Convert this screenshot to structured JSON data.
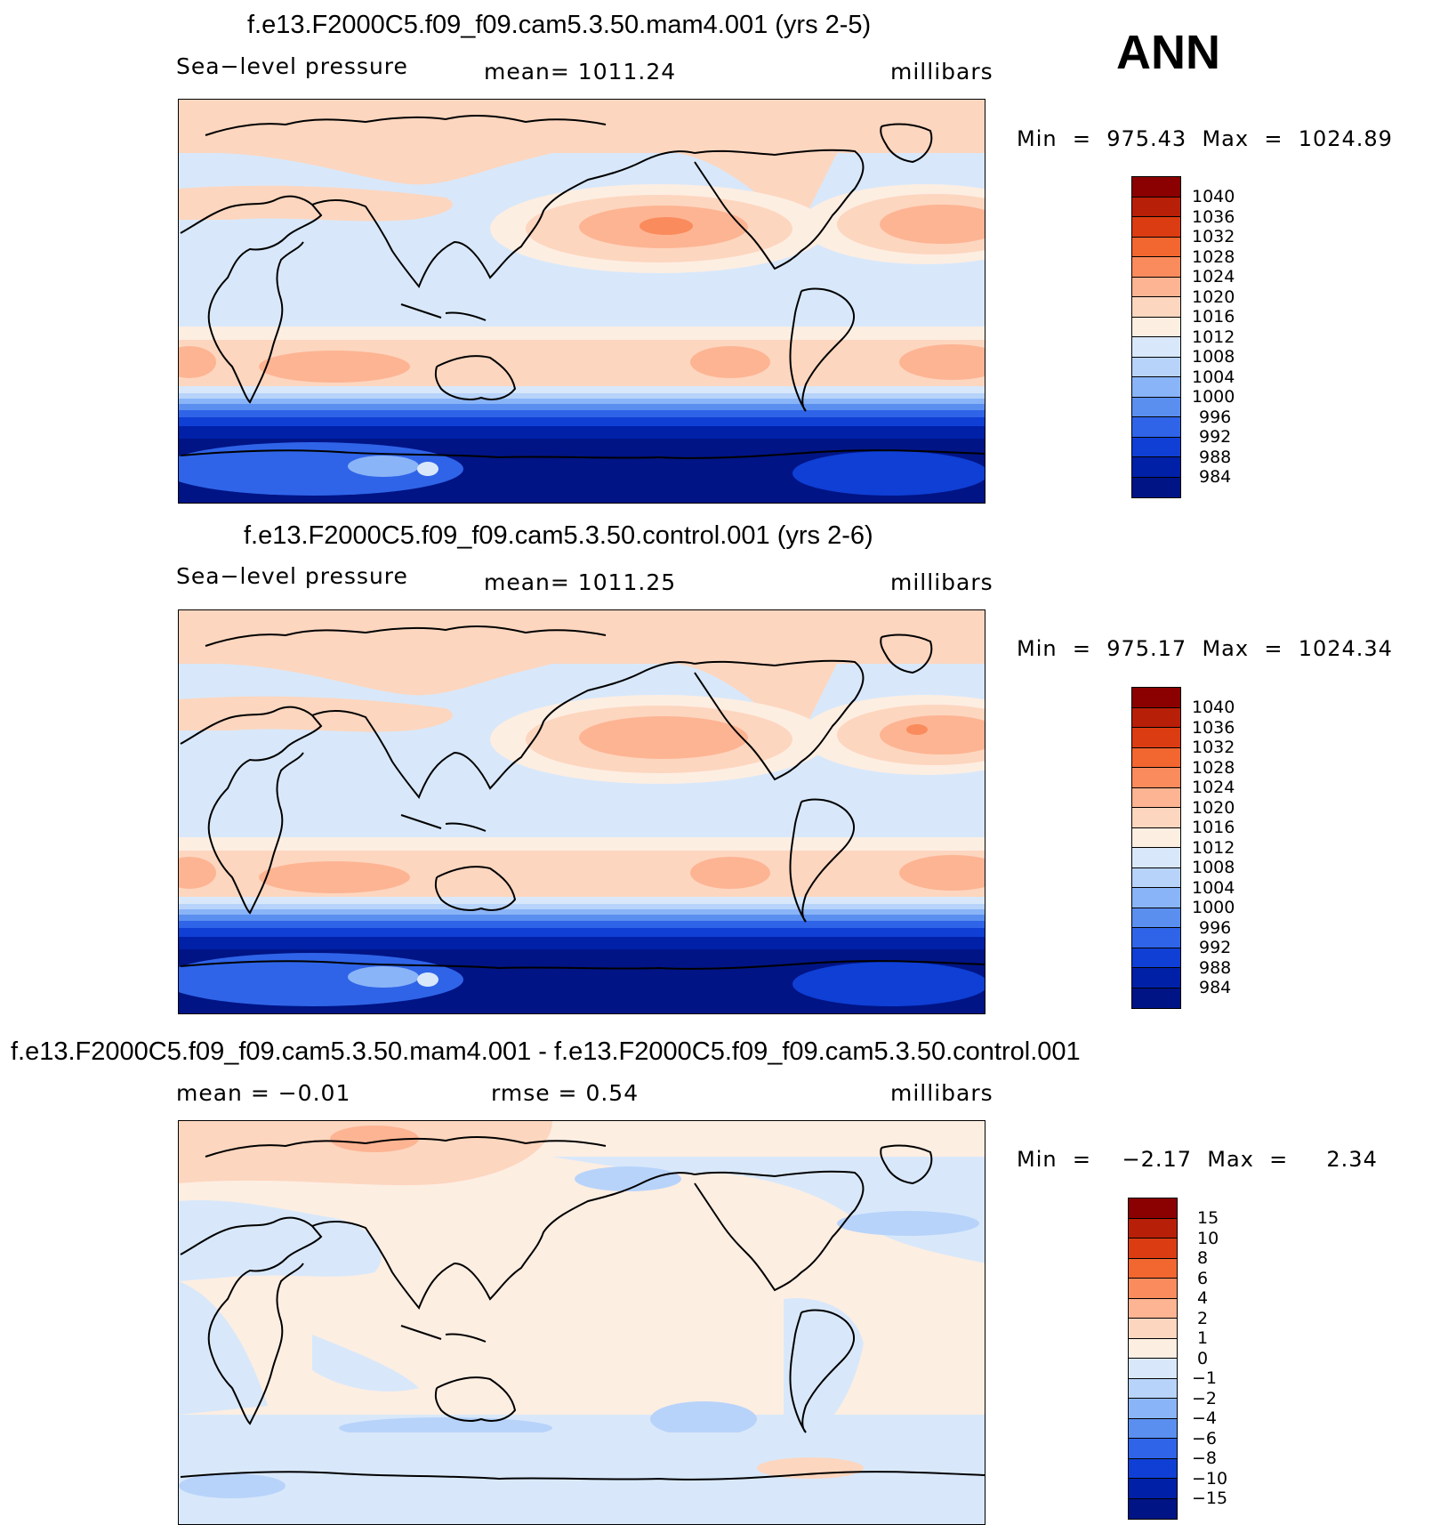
{
  "season": "ANN",
  "panels": [
    {
      "title": "f.e13.F2000C5.f09_f09.cam5.3.50.mam4.001 (yrs 2-5)",
      "variable": "Sea−level pressure",
      "stat": "mean=  1011.24",
      "units": "millibars",
      "minmax": "Min  =  975.43  Max  =  1024.89",
      "scale": "abs"
    },
    {
      "title": "f.e13.F2000C5.f09_f09.cam5.3.50.control.001 (yrs 2-6)",
      "variable": "Sea−level pressure",
      "stat": "mean=  1011.25",
      "units": "millibars",
      "minmax": "Min  =  975.17  Max  =  1024.34",
      "scale": "abs"
    },
    {
      "title": "f.e13.F2000C5.f09_f09.cam5.3.50.mam4.001 - f.e13.F2000C5.f09_f09.cam5.3.50.control.001",
      "variable": "mean  =    −0.01",
      "stat": "rmse  =     0.54",
      "units": "millibars",
      "minmax": "Min  =    −2.17  Max  =     2.34",
      "scale": "diff"
    }
  ],
  "colorbars": {
    "abs": {
      "levels": [
        "1040",
        "1036",
        "1032",
        "1028",
        "1024",
        "1020",
        "1016",
        "1012",
        "1008",
        "1004",
        "1000",
        "996",
        "992",
        "988",
        "984"
      ],
      "colors": [
        "#8b0000",
        "#b81f08",
        "#dc3c12",
        "#f2662f",
        "#fa8b5c",
        "#fdb493",
        "#fdd6bf",
        "#fdeee2",
        "#d8e8fa",
        "#b8d3fa",
        "#8ab4f8",
        "#5a8ff0",
        "#2f64e8",
        "#0f3fd4",
        "#0020a8",
        "#001485"
      ]
    },
    "diff": {
      "levels": [
        "15",
        "10",
        "8",
        "6",
        "4",
        "2",
        "1",
        "0",
        "−1",
        "−2",
        "−4",
        "−6",
        "−8",
        "−10",
        "−15"
      ],
      "colors": [
        "#8b0000",
        "#b81f08",
        "#dc3c12",
        "#f2662f",
        "#fa8b5c",
        "#fdb493",
        "#fdd6bf",
        "#fdeee2",
        "#d8e8fa",
        "#b8d3fa",
        "#8ab4f8",
        "#5a8ff0",
        "#2f64e8",
        "#0f3fd4",
        "#0020a8",
        "#001485"
      ]
    }
  }
}
